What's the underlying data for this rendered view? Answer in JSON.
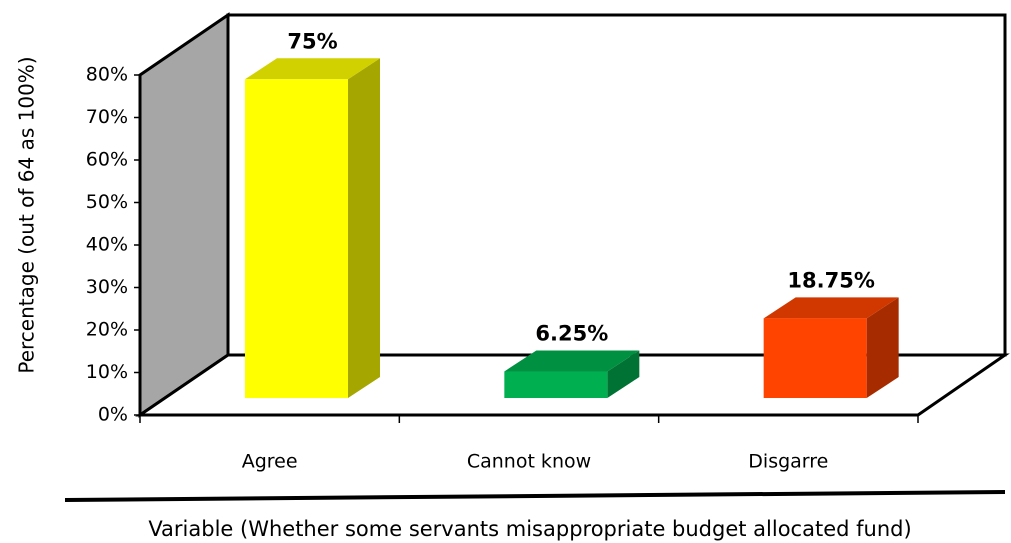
{
  "chart_data": {
    "type": "bar",
    "y_label": "Percentage (out of 64 as 100%)",
    "x_label": "Variable (Whether some servants misappropriate budget allocated fund)",
    "categories": [
      "Agree",
      "Cannot know",
      "Disgarre"
    ],
    "values": [
      75,
      6.25,
      18.75
    ],
    "value_labels": [
      "75%",
      "6.25%",
      "18.75%"
    ],
    "colors": [
      "#ffff00",
      "#00b050",
      "#ff4400"
    ],
    "ylim": [
      0,
      80
    ],
    "yticks": [
      {
        "value": 0,
        "label": "0%"
      },
      {
        "value": 10,
        "label": "10%"
      },
      {
        "value": 20,
        "label": "20%"
      },
      {
        "value": 30,
        "label": "30%"
      },
      {
        "value": 40,
        "label": "40%"
      },
      {
        "value": 50,
        "label": "50%"
      },
      {
        "value": 60,
        "label": "60%"
      },
      {
        "value": 70,
        "label": "70%"
      },
      {
        "value": 80,
        "label": "80%"
      }
    ]
  }
}
